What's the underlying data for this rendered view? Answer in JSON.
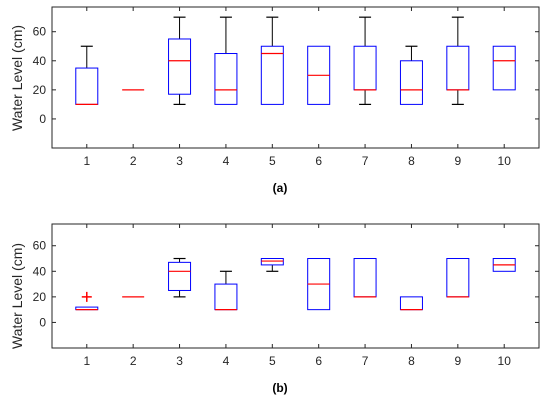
{
  "chart_data": [
    {
      "type": "boxplot",
      "caption": "(a)",
      "ylabel": "Water Level (cm)",
      "categories": [
        "1",
        "2",
        "3",
        "4",
        "5",
        "6",
        "7",
        "8",
        "9",
        "10"
      ],
      "yticks": [
        "0",
        "20",
        "40",
        "60"
      ],
      "ylim": [
        -20,
        77
      ],
      "grid": false,
      "box_color": "#0000ff",
      "median_color": "#ff0000",
      "whisker_color": "#000000",
      "outlier_color": "#ff0000",
      "boxes": [
        {
          "category": "1",
          "whisker_low": 10,
          "q1": 10,
          "median": 10,
          "q3": 35,
          "whisker_high": 50,
          "outliers": []
        },
        {
          "category": "2",
          "whisker_low": 20,
          "q1": 20,
          "median": 20,
          "q3": 20,
          "whisker_high": 20,
          "outliers": []
        },
        {
          "category": "3",
          "whisker_low": 10,
          "q1": 17,
          "median": 40,
          "q3": 55,
          "whisker_high": 70,
          "outliers": []
        },
        {
          "category": "4",
          "whisker_low": 10,
          "q1": 10,
          "median": 20,
          "q3": 45,
          "whisker_high": 70,
          "outliers": []
        },
        {
          "category": "5",
          "whisker_low": 10,
          "q1": 10,
          "median": 45,
          "q3": 50,
          "whisker_high": 70,
          "outliers": []
        },
        {
          "category": "6",
          "whisker_low": 10,
          "q1": 10,
          "median": 30,
          "q3": 50,
          "whisker_high": 50,
          "outliers": []
        },
        {
          "category": "7",
          "whisker_low": 10,
          "q1": 20,
          "median": 20,
          "q3": 50,
          "whisker_high": 70,
          "outliers": []
        },
        {
          "category": "8",
          "whisker_low": 10,
          "q1": 10,
          "median": 20,
          "q3": 40,
          "whisker_high": 50,
          "outliers": []
        },
        {
          "category": "9",
          "whisker_low": 10,
          "q1": 20,
          "median": 20,
          "q3": 50,
          "whisker_high": 70,
          "outliers": []
        },
        {
          "category": "10",
          "whisker_low": 20,
          "q1": 20,
          "median": 40,
          "q3": 50,
          "whisker_high": 50,
          "outliers": []
        }
      ]
    },
    {
      "type": "boxplot",
      "caption": "(b)",
      "ylabel": "Water Level (cm)",
      "categories": [
        "1",
        "2",
        "3",
        "4",
        "5",
        "6",
        "7",
        "8",
        "9",
        "10"
      ],
      "yticks": [
        "0",
        "20",
        "40",
        "60"
      ],
      "ylim": [
        -20,
        77
      ],
      "grid": false,
      "box_color": "#0000ff",
      "median_color": "#ff0000",
      "whisker_color": "#000000",
      "outlier_color": "#ff0000",
      "boxes": [
        {
          "category": "1",
          "whisker_low": 10,
          "q1": 10,
          "median": 10,
          "q3": 12,
          "whisker_high": 12,
          "outliers": [
            20
          ]
        },
        {
          "category": "2",
          "whisker_low": 20,
          "q1": 20,
          "median": 20,
          "q3": 20,
          "whisker_high": 20,
          "outliers": []
        },
        {
          "category": "3",
          "whisker_low": 20,
          "q1": 25,
          "median": 40,
          "q3": 47,
          "whisker_high": 50,
          "outliers": []
        },
        {
          "category": "4",
          "whisker_low": 10,
          "q1": 10,
          "median": 10,
          "q3": 30,
          "whisker_high": 40,
          "outliers": []
        },
        {
          "category": "5",
          "whisker_low": 40,
          "q1": 45,
          "median": 48,
          "q3": 50,
          "whisker_high": 50,
          "outliers": []
        },
        {
          "category": "6",
          "whisker_low": 10,
          "q1": 10,
          "median": 30,
          "q3": 50,
          "whisker_high": 50,
          "outliers": []
        },
        {
          "category": "7",
          "whisker_low": 20,
          "q1": 20,
          "median": 20,
          "q3": 50,
          "whisker_high": 50,
          "outliers": []
        },
        {
          "category": "8",
          "whisker_low": 10,
          "q1": 10,
          "median": 10,
          "q3": 20,
          "whisker_high": 20,
          "outliers": []
        },
        {
          "category": "9",
          "whisker_low": 20,
          "q1": 20,
          "median": 20,
          "q3": 50,
          "whisker_high": 50,
          "outliers": []
        },
        {
          "category": "10",
          "whisker_low": 40,
          "q1": 40,
          "median": 45,
          "q3": 50,
          "whisker_high": 50,
          "outliers": []
        }
      ]
    }
  ]
}
